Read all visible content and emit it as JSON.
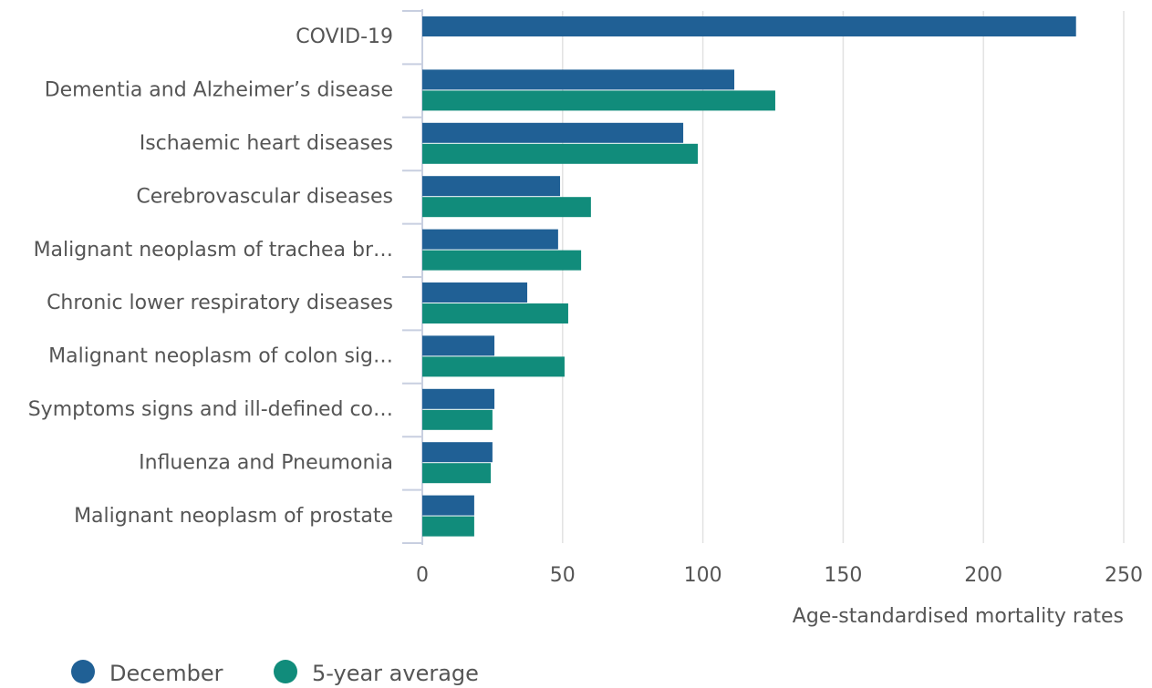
{
  "chart_data": {
    "type": "bar",
    "orientation": "horizontal",
    "categories": [
      "COVID-19",
      "Dementia and Alzheimer’s disease",
      "Ischaemic heart diseases",
      "Cerebrovascular diseases",
      "Malignant neoplasm of trachea br…",
      "Chronic lower respiratory diseases",
      "Malignant neoplasm of colon sig…",
      "Symptoms signs and ill-defined co…",
      "Influenza and Pneumonia",
      "Malignant neoplasm of prostate"
    ],
    "series": [
      {
        "name": "December",
        "color": "#206095",
        "values": [
          233,
          111.2,
          93,
          49.1,
          48.4,
          37.4,
          25.7,
          25.7,
          25,
          18.5
        ]
      },
      {
        "name": "5-year average",
        "color": "#118c7b",
        "values": [
          null,
          125.8,
          98.2,
          60.1,
          56.6,
          52,
          50.7,
          25,
          24.4,
          18.5
        ]
      }
    ],
    "xlim": [
      0,
      250
    ],
    "xticks": [
      0,
      50,
      100,
      150,
      200,
      250
    ],
    "x_label": "Age-standardised mortality rates",
    "grid": true
  }
}
